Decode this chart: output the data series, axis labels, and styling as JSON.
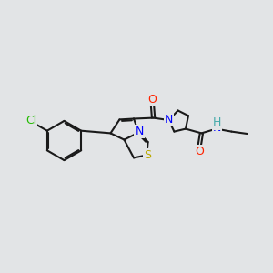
{
  "bg_color": "#e2e4e6",
  "bond_color": "#1a1a1a",
  "bond_width": 1.5,
  "dbo": 0.055,
  "atom_colors": {
    "N": "#0000ff",
    "O": "#ff2200",
    "S": "#bbaa00",
    "Cl": "#22bb00",
    "H": "#44aaaa",
    "C": "#1a1a1a"
  },
  "fs": 9.0
}
